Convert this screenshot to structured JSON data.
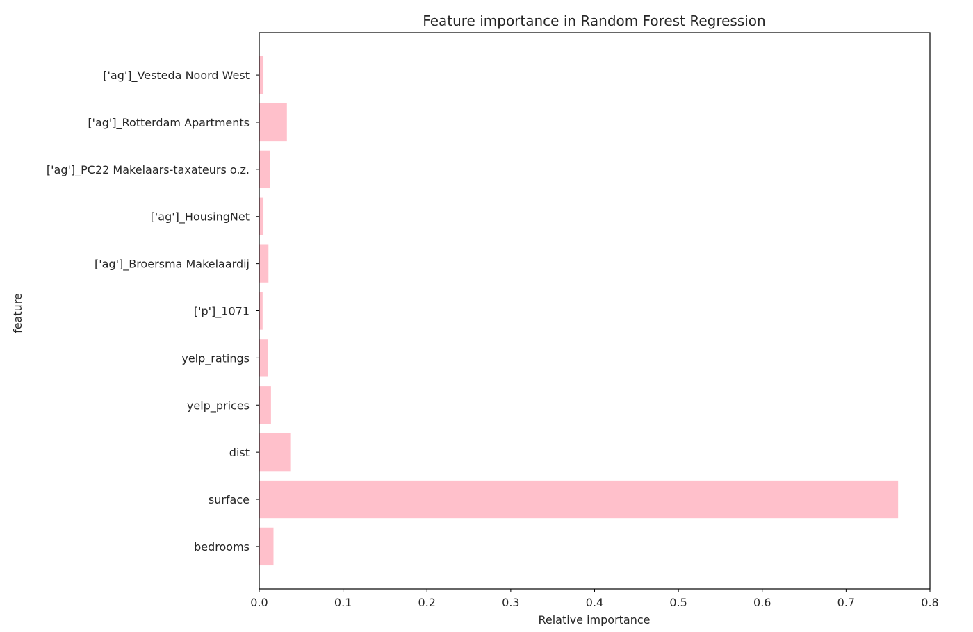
{
  "chart_data": {
    "type": "bar",
    "orientation": "horizontal",
    "title": "Feature importance in Random Forest Regression",
    "xlabel": "Relative importance",
    "ylabel": "feature",
    "categories": [
      "bedrooms",
      "surface",
      "dist",
      "yelp_prices",
      "yelp_ratings",
      "['p']_1071",
      "['ag']_Broersma Makelaardij",
      "['ag']_HousingNet",
      "['ag']_PC22 Makelaars-taxateurs o.z.",
      "['ag']_Rotterdam Apartments",
      "['ag']_Vesteda Noord West"
    ],
    "values": [
      0.017,
      0.762,
      0.037,
      0.014,
      0.01,
      0.004,
      0.011,
      0.005,
      0.013,
      0.033,
      0.005
    ],
    "xlim": [
      0,
      0.8
    ],
    "xticks": [
      0.0,
      0.1,
      0.2,
      0.3,
      0.4,
      0.5,
      0.6,
      0.7,
      0.8
    ],
    "xtick_labels": [
      "0.0",
      "0.1",
      "0.2",
      "0.3",
      "0.4",
      "0.5",
      "0.6",
      "0.7",
      "0.8"
    ],
    "bar_color": "#ffc0cb",
    "grid": false,
    "legend": "none"
  }
}
